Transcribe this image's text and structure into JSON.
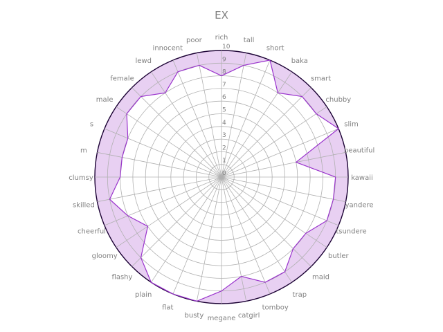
{
  "chart_data": {
    "type": "radar",
    "title": "EX",
    "rlim": [
      0,
      10
    ],
    "ring_ticks": [
      0,
      1,
      2,
      3,
      4,
      5,
      6,
      7,
      8,
      9,
      10
    ],
    "grid": true,
    "categories": [
      "rich",
      "tall",
      "short",
      "baka",
      "smart",
      "chubby",
      "slim",
      "beautiful",
      "kawaii",
      "yandere",
      "tsundere",
      "butler",
      "maid",
      "trap",
      "tomboy",
      "catgirl",
      "megane",
      "busty",
      "flat",
      "plain",
      "flashy",
      "gloomy",
      "cheerful",
      "skilled",
      "clumsy",
      "m",
      "s",
      "male",
      "female",
      "lewd",
      "innocent",
      "poor"
    ],
    "series": [
      {
        "values": [
          8,
          9,
          10,
          8,
          9,
          9,
          10,
          6,
          9,
          9,
          9,
          8,
          8,
          9,
          9,
          8,
          9,
          10,
          10,
          10,
          9,
          7,
          8,
          9,
          8,
          8,
          8,
          9,
          9,
          8,
          9,
          9
        ]
      }
    ],
    "colors": {
      "line": "#9932cc",
      "fill": "#e8d0f2",
      "grid": "#b0b0b0",
      "outer_ring": "#1a0033",
      "text": "#808080"
    }
  }
}
